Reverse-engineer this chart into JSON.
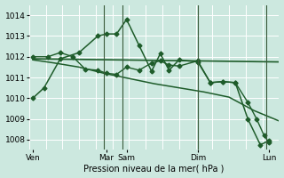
{
  "background_color": "#cce8df",
  "grid_color": "#b0d8cc",
  "line_color": "#1e5c2a",
  "title": "Pression niveau de la mer( hPa )",
  "ylim": [
    1007.5,
    1014.5
  ],
  "yticks": [
    1008,
    1009,
    1010,
    1011,
    1012,
    1013,
    1014
  ],
  "xlim": [
    0,
    20
  ],
  "xtick_positions": [
    0.3,
    6.2,
    7.8,
    13.5,
    19.2
  ],
  "xtick_labels": [
    "Ven",
    "Mar",
    "Sam",
    "Dim",
    "Lun"
  ],
  "vlines": [
    6.0,
    7.5,
    13.5,
    19.0
  ],
  "series": [
    {
      "x": [
        0.3,
        1.2,
        2.5,
        4.0,
        5.5,
        6.2,
        7.0,
        7.8,
        8.8,
        9.8,
        10.5,
        11.2,
        12.0,
        13.5,
        14.5,
        15.5,
        16.5,
        17.5,
        18.5,
        19.2
      ],
      "y": [
        1010.0,
        1010.5,
        1011.9,
        1012.2,
        1013.0,
        1013.1,
        1013.1,
        1013.8,
        1012.55,
        1011.3,
        1012.15,
        1011.35,
        1011.85,
        1011.75,
        1010.75,
        1010.8,
        1010.75,
        1009.0,
        1007.75,
        1007.95
      ],
      "marker": "D",
      "markersize": 2.5,
      "linewidth": 1.1,
      "zorder": 4
    },
    {
      "x": [
        0.3,
        20.0
      ],
      "y": [
        1011.9,
        1011.75
      ],
      "marker": null,
      "markersize": 0,
      "linewidth": 1.2,
      "zorder": 3
    },
    {
      "x": [
        0.3,
        2.0,
        4.0,
        6.0,
        8.0,
        10.0,
        12.0,
        14.0,
        16.0,
        18.0,
        20.0
      ],
      "y": [
        1011.85,
        1011.7,
        1011.5,
        1011.2,
        1010.95,
        1010.7,
        1010.5,
        1010.3,
        1010.05,
        1009.4,
        1008.9
      ],
      "marker": null,
      "markersize": 0,
      "linewidth": 1.1,
      "zorder": 3
    },
    {
      "x": [
        0.3,
        1.5,
        2.5,
        3.5,
        4.5,
        5.5,
        6.2,
        7.0,
        7.8,
        8.8,
        9.8,
        10.5,
        11.2,
        12.0,
        13.5,
        14.5,
        15.5,
        16.5,
        17.5,
        18.2,
        18.8,
        19.2
      ],
      "y": [
        1012.0,
        1012.0,
        1012.2,
        1012.0,
        1011.4,
        1011.35,
        1011.2,
        1011.15,
        1011.5,
        1011.35,
        1011.7,
        1011.8,
        1011.6,
        1011.55,
        1011.8,
        1010.75,
        1010.8,
        1010.75,
        1009.8,
        1009.0,
        1008.2,
        1007.85
      ],
      "marker": "D",
      "markersize": 2.5,
      "linewidth": 1.0,
      "zorder": 4
    }
  ]
}
